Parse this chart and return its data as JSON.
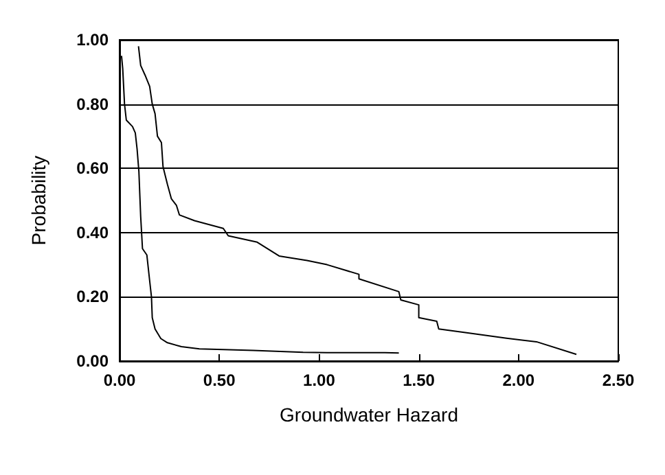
{
  "chart_data": {
    "type": "line",
    "xlabel": "Groundwater Hazard",
    "ylabel": "Probability",
    "xlim": [
      0,
      2.5
    ],
    "xticks": [
      {
        "value": 0,
        "label": "0.00"
      },
      {
        "value": 0.5,
        "label": "0.50"
      },
      {
        "value": 1,
        "label": "1.00"
      },
      {
        "value": 1.5,
        "label": "1.50"
      },
      {
        "value": 2,
        "label": "2.00"
      },
      {
        "value": 2.5,
        "label": "2.50"
      }
    ],
    "ylim": [
      0,
      1
    ],
    "yticks": [
      {
        "value": 0,
        "label": "0.00"
      },
      {
        "value": 0.2,
        "label": "0.20"
      },
      {
        "value": 0.4,
        "label": "0.40"
      },
      {
        "value": 0.6,
        "label": "0.60"
      },
      {
        "value": 0.8,
        "label": "0.80"
      },
      {
        "value": 1,
        "label": "1.00"
      }
    ],
    "grid": "y",
    "marker": "none",
    "line_style": "solid",
    "series": [
      {
        "color": "#000000",
        "x": [
          0.01,
          0.016,
          0.025,
          0.034,
          0.065,
          0.079,
          0.088,
          0.097,
          0.106,
          0.115,
          0.137,
          0.151,
          0.16,
          0.164,
          0.178,
          0.207,
          0.24,
          0.31,
          0.4,
          0.67,
          0.92,
          1.04,
          1.33,
          1.4
        ],
        "values": [
          0.95,
          0.91,
          0.8,
          0.75,
          0.73,
          0.71,
          0.66,
          0.59,
          0.45,
          0.35,
          0.33,
          0.25,
          0.2,
          0.135,
          0.1,
          0.07,
          0.057,
          0.045,
          0.038,
          0.033,
          0.027,
          0.026,
          0.026,
          0.025
        ]
      },
      {
        "color": "#000000",
        "x": [
          0.095,
          0.106,
          0.128,
          0.151,
          0.164,
          0.178,
          0.19,
          0.21,
          0.218,
          0.24,
          0.26,
          0.285,
          0.3,
          0.376,
          0.52,
          0.545,
          0.69,
          0.8,
          0.94,
          1.04,
          1.2,
          1.2,
          1.4,
          1.41,
          1.5,
          1.5,
          1.59,
          1.6,
          1.74,
          1.94,
          2.09,
          2.29
        ],
        "values": [
          0.98,
          0.92,
          0.89,
          0.855,
          0.8,
          0.77,
          0.7,
          0.68,
          0.605,
          0.55,
          0.505,
          0.485,
          0.455,
          0.437,
          0.413,
          0.39,
          0.37,
          0.327,
          0.313,
          0.3,
          0.27,
          0.256,
          0.216,
          0.19,
          0.175,
          0.135,
          0.124,
          0.1,
          0.088,
          0.071,
          0.06,
          0.021
        ]
      }
    ]
  }
}
